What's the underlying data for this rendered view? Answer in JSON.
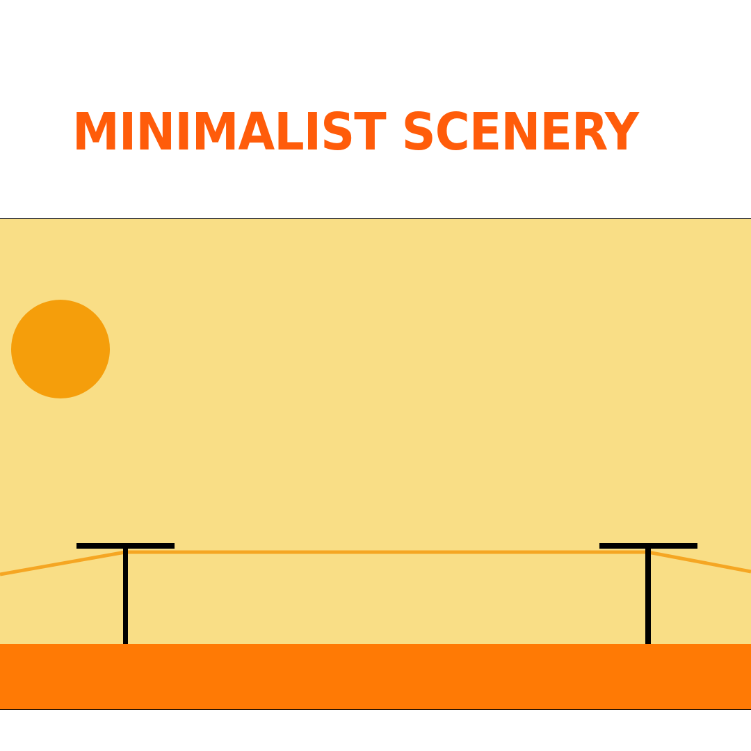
{
  "title": {
    "text": "MINIMALIST SCENERY"
  },
  "colors": {
    "title": "#ff5c0a",
    "sky": "#f9de86",
    "sun": "#f59e0b",
    "ground": "#ff7a05",
    "wire": "#f5a623",
    "pole": "#000000",
    "border": "#000000"
  },
  "scene": {
    "elements": [
      "sky",
      "sun",
      "ground",
      "left-pole",
      "right-pole",
      "power-lines"
    ]
  }
}
